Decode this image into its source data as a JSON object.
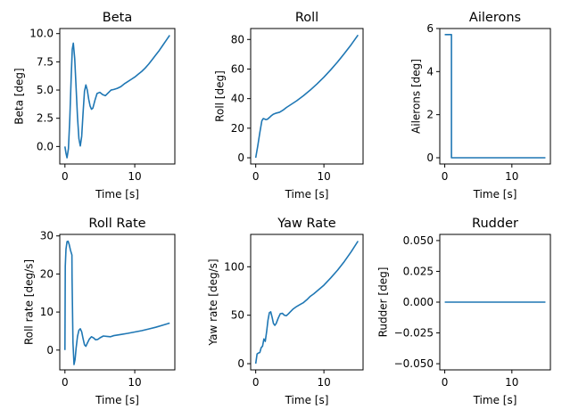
{
  "colors": {
    "series": "#1f77b4",
    "axis": "#000000",
    "background": "#ffffff"
  },
  "chart_data": [
    {
      "type": "line",
      "title": "Beta",
      "xlabel": "Time [s]",
      "ylabel": "Beta [deg]",
      "xlim": [
        -0.74,
        15.74
      ],
      "ylim": [
        -1.55,
        10.45
      ],
      "xticks": [
        0,
        10
      ],
      "xticklabels": [
        "0",
        "10"
      ],
      "yticks": [
        0,
        2.5,
        5,
        7.5,
        10
      ],
      "yticklabels": [
        "0.0",
        "2.5",
        "5.0",
        "7.5",
        "10.0"
      ],
      "grid": false,
      "series": [
        {
          "x": [
            0,
            0.15,
            0.3,
            0.5,
            0.7,
            0.9,
            1.05,
            1.2,
            1.4,
            1.6,
            1.8,
            2.0,
            2.2,
            2.4,
            2.6,
            2.8,
            3.0,
            3.2,
            3.4,
            3.6,
            3.8,
            4.0,
            4.3,
            4.6,
            5.0,
            5.4,
            5.8,
            6.2,
            6.6,
            7.0,
            7.5,
            8.0,
            8.5,
            9.0,
            9.5,
            10.0,
            10.5,
            11.0,
            11.5,
            12.0,
            12.5,
            13.0,
            13.5,
            14.0,
            14.5,
            15.0
          ],
          "y": [
            0.0,
            -0.6,
            -1.0,
            -0.2,
            2.5,
            6.2,
            8.6,
            9.15,
            7.8,
            5.2,
            2.6,
            0.7,
            0.05,
            0.9,
            3.0,
            4.9,
            5.45,
            5.0,
            4.2,
            3.6,
            3.3,
            3.4,
            4.1,
            4.7,
            4.8,
            4.6,
            4.5,
            4.75,
            5.0,
            5.05,
            5.15,
            5.3,
            5.55,
            5.75,
            5.95,
            6.15,
            6.4,
            6.65,
            6.95,
            7.3,
            7.7,
            8.1,
            8.5,
            8.95,
            9.4,
            9.85
          ]
        }
      ]
    },
    {
      "type": "line",
      "title": "Roll",
      "xlabel": "Time [s]",
      "ylabel": "Roll [deg]",
      "xlim": [
        -0.74,
        15.74
      ],
      "ylim": [
        -4.2,
        87.4
      ],
      "xticks": [
        0,
        10
      ],
      "xticklabels": [
        "0",
        "10"
      ],
      "yticks": [
        0,
        20,
        40,
        60,
        80
      ],
      "yticklabels": [
        "0",
        "20",
        "40",
        "60",
        "80"
      ],
      "grid": false,
      "series": [
        {
          "x": [
            0,
            0.3,
            0.6,
            0.9,
            1.1,
            1.3,
            1.5,
            1.7,
            2.0,
            2.3,
            2.6,
            3.0,
            3.5,
            4.0,
            4.5,
            5.0,
            6.0,
            7.0,
            8.0,
            9.0,
            10.0,
            11.0,
            12.0,
            13.0,
            14.0,
            15.0
          ],
          "y": [
            0,
            8,
            17,
            25,
            26.5,
            26.2,
            25.8,
            26.0,
            27.2,
            28.5,
            29.5,
            30.2,
            30.8,
            32.2,
            34.0,
            35.5,
            38.5,
            42.0,
            45.8,
            50.0,
            54.5,
            59.5,
            64.8,
            70.5,
            76.5,
            83.0
          ]
        }
      ]
    },
    {
      "type": "line",
      "title": "Ailerons",
      "xlabel": "Time [s]",
      "ylabel": "Ailerons [deg]",
      "xlim": [
        -0.74,
        15.74
      ],
      "ylim": [
        -0.29,
        6.0
      ],
      "xticks": [
        0,
        10
      ],
      "xticklabels": [
        "0",
        "10"
      ],
      "yticks": [
        0,
        2,
        4,
        6
      ],
      "yticklabels": [
        "0",
        "2",
        "4",
        "6"
      ],
      "grid": false,
      "series": [
        {
          "x": [
            0,
            1.0,
            1.0,
            15.0
          ],
          "y": [
            5.72,
            5.72,
            0,
            0
          ]
        }
      ]
    },
    {
      "type": "line",
      "title": "Roll Rate",
      "xlabel": "Time [s]",
      "ylabel": "Roll rate [deg/s]",
      "xlim": [
        -0.74,
        15.74
      ],
      "ylim": [
        -5.2,
        30.4
      ],
      "xticks": [
        0,
        10
      ],
      "xticklabels": [
        "0",
        "10"
      ],
      "yticks": [
        0,
        10,
        20,
        30
      ],
      "yticklabels": [
        "0",
        "10",
        "20",
        "30"
      ],
      "grid": false,
      "series": [
        {
          "x": [
            0,
            0.05,
            0.15,
            0.3,
            0.45,
            0.6,
            0.8,
            1.0,
            1.02,
            1.15,
            1.3,
            1.45,
            1.6,
            1.8,
            2.0,
            2.2,
            2.4,
            2.6,
            2.8,
            3.0,
            3.2,
            3.5,
            3.8,
            4.1,
            4.4,
            4.7,
            5.0,
            5.5,
            6.0,
            6.5,
            7.0,
            8.0,
            9.0,
            10.0,
            11.0,
            12.0,
            13.0,
            14.0,
            15.0
          ],
          "y": [
            0,
            22.0,
            26.5,
            28.5,
            28.6,
            27.8,
            26.2,
            25.0,
            19.0,
            2.0,
            -3.8,
            -2.5,
            0.5,
            3.6,
            5.2,
            5.6,
            4.8,
            3.0,
            1.4,
            1.0,
            1.8,
            2.9,
            3.5,
            3.2,
            2.7,
            2.8,
            3.2,
            3.7,
            3.6,
            3.5,
            3.8,
            4.1,
            4.4,
            4.75,
            5.1,
            5.55,
            6.0,
            6.55,
            7.1
          ]
        }
      ]
    },
    {
      "type": "line",
      "title": "Yaw Rate",
      "xlabel": "Time [s]",
      "ylabel": "Yaw rate [deg/s]",
      "xlim": [
        -0.74,
        15.74
      ],
      "ylim": [
        -6.4,
        133.4
      ],
      "xticks": [
        0,
        10
      ],
      "xticklabels": [
        "0",
        "10"
      ],
      "yticks": [
        0,
        50,
        100
      ],
      "yticklabels": [
        "0",
        "50",
        "100"
      ],
      "grid": false,
      "series": [
        {
          "x": [
            0,
            0.2,
            0.4,
            0.6,
            0.8,
            1.0,
            1.2,
            1.4,
            1.6,
            1.8,
            2.0,
            2.2,
            2.4,
            2.6,
            2.8,
            3.0,
            3.3,
            3.6,
            3.9,
            4.2,
            4.5,
            4.8,
            5.0,
            5.5,
            6.0,
            6.5,
            7.0,
            7.5,
            8.0,
            8.5,
            9.0,
            10.0,
            11.0,
            12.0,
            13.0,
            14.0,
            15.0
          ],
          "y": [
            0,
            10.0,
            11.0,
            11.5,
            16.5,
            18.0,
            25.5,
            23.0,
            33.0,
            45.0,
            52.5,
            53.5,
            48.0,
            41.5,
            39.5,
            41.5,
            47.0,
            51.5,
            52.0,
            50.0,
            49.5,
            51.5,
            53.0,
            56.5,
            59.0,
            61.0,
            63.0,
            66.0,
            69.5,
            72.0,
            75.0,
            81.0,
            88.5,
            96.5,
            105.5,
            115.5,
            126.5
          ]
        }
      ]
    },
    {
      "type": "line",
      "title": "Rudder",
      "xlabel": "Time [s]",
      "ylabel": "Rudder [deg]",
      "xlim": [
        -0.74,
        15.74
      ],
      "ylim": [
        -0.055,
        0.055
      ],
      "xticks": [
        0,
        10
      ],
      "xticklabels": [
        "0",
        "10"
      ],
      "yticks": [
        -0.05,
        -0.025,
        0,
        0.025,
        0.05
      ],
      "yticklabels": [
        "−0.050",
        "−0.025",
        "0.000",
        "0.025",
        "0.050"
      ],
      "grid": false,
      "series": [
        {
          "x": [
            0,
            15
          ],
          "y": [
            0,
            0
          ]
        }
      ]
    }
  ]
}
